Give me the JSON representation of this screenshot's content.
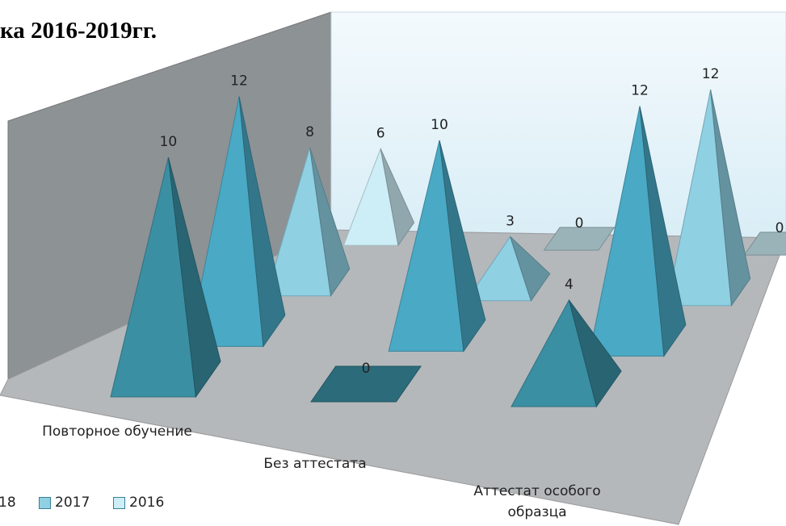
{
  "chart_data": {
    "type": "pyramid3d",
    "title": "ка 2016-2019гг.",
    "categories": [
      "Повторное обучение",
      "Без аттестата",
      "Аттестат особого образца"
    ],
    "series": [
      {
        "color": "#3b8fa3",
        "values": [
          10,
          0,
          4
        ]
      },
      {
        "name": "18",
        "color": "#4aa9c4",
        "values": [
          12,
          10,
          12
        ]
      },
      {
        "name": "2017",
        "color": "#8fd0e3",
        "values": [
          8,
          3,
          12
        ]
      },
      {
        "name": "2016",
        "color": "#cdeef7",
        "values": [
          6,
          0,
          0
        ]
      }
    ]
  }
}
